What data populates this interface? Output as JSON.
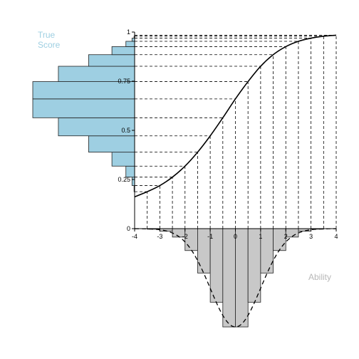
{
  "chart_data": {
    "type": "bar",
    "description_free": true,
    "x_axis": {
      "label": "Ability",
      "range": [
        -4,
        4
      ],
      "ticks": [
        {
          "value": -4,
          "label": "-4"
        },
        {
          "value": -3,
          "label": "-3"
        },
        {
          "value": -2,
          "label": "-2"
        },
        {
          "value": -1,
          "label": "-1"
        },
        {
          "value": 0,
          "label": "0"
        },
        {
          "value": 1,
          "label": "1"
        },
        {
          "value": 2,
          "label": "2"
        },
        {
          "value": 3,
          "label": "3"
        },
        {
          "value": 4,
          "label": "4"
        }
      ]
    },
    "y_axis": {
      "label_line1": "True",
      "label_line2": "Score",
      "range": [
        0,
        1
      ],
      "ticks": [
        {
          "value": 0,
          "label": "0"
        },
        {
          "value": 0.25,
          "label": "0.25"
        },
        {
          "value": 0.5,
          "label": "0.5"
        },
        {
          "value": 0.75,
          "label": "0.75"
        },
        {
          "value": 1,
          "label": "1"
        }
      ]
    },
    "curve": {
      "points": [
        [
          -4,
          0.162
        ],
        [
          -3.5,
          0.188
        ],
        [
          -3,
          0.219
        ],
        [
          -2.5,
          0.262
        ],
        [
          -2,
          0.318
        ],
        [
          -1.5,
          0.389
        ],
        [
          -1,
          0.472
        ],
        [
          -0.5,
          0.564
        ],
        [
          0,
          0.66
        ],
        [
          0.5,
          0.748
        ],
        [
          1,
          0.826
        ],
        [
          1.5,
          0.885
        ],
        [
          2,
          0.926
        ],
        [
          2.5,
          0.953
        ],
        [
          3,
          0.969
        ],
        [
          3.5,
          0.979
        ],
        [
          4,
          0.984
        ]
      ]
    },
    "ability_histogram": {
      "bin_width": 0.5,
      "bins": [
        {
          "x0": -3.5,
          "x1": -3.0,
          "density": 0.002
        },
        {
          "x0": -3.0,
          "x1": -2.5,
          "density": 0.009
        },
        {
          "x0": -2.5,
          "x1": -2.0,
          "density": 0.03
        },
        {
          "x0": -2.0,
          "x1": -1.5,
          "density": 0.078
        },
        {
          "x0": -1.5,
          "x1": -1.0,
          "density": 0.158
        },
        {
          "x0": -1.0,
          "x1": -0.5,
          "density": 0.262
        },
        {
          "x0": -0.5,
          "x1": 0.0,
          "density": 0.35
        },
        {
          "x0": 0.0,
          "x1": 0.5,
          "density": 0.35
        },
        {
          "x0": 0.5,
          "x1": 1.0,
          "density": 0.262
        },
        {
          "x0": 1.0,
          "x1": 1.5,
          "density": 0.158
        },
        {
          "x0": 1.5,
          "x1": 2.0,
          "density": 0.078
        },
        {
          "x0": 2.0,
          "x1": 2.5,
          "density": 0.03
        },
        {
          "x0": 2.5,
          "x1": 3.0,
          "density": 0.009
        },
        {
          "x0": 3.0,
          "x1": 3.5,
          "density": 0.002
        }
      ],
      "density_max": 0.35,
      "fill": "#c8c8c8"
    },
    "ability_density_curve": {
      "type": "normal",
      "mean": 0,
      "sd": 1,
      "style": "dashed"
    },
    "true_score_histogram": {
      "bins": [
        {
          "y0": 0.188,
          "y1": 0.219,
          "count": 0.002
        },
        {
          "y0": 0.219,
          "y1": 0.262,
          "count": 0.009
        },
        {
          "y0": 0.262,
          "y1": 0.318,
          "count": 0.03
        },
        {
          "y0": 0.318,
          "y1": 0.389,
          "count": 0.078
        },
        {
          "y0": 0.389,
          "y1": 0.472,
          "count": 0.158
        },
        {
          "y0": 0.472,
          "y1": 0.564,
          "count": 0.262
        },
        {
          "y0": 0.564,
          "y1": 0.66,
          "count": 0.35
        },
        {
          "y0": 0.66,
          "y1": 0.748,
          "count": 0.35
        },
        {
          "y0": 0.748,
          "y1": 0.826,
          "count": 0.262
        },
        {
          "y0": 0.826,
          "y1": 0.885,
          "count": 0.158
        },
        {
          "y0": 0.885,
          "y1": 0.926,
          "count": 0.078
        },
        {
          "y0": 0.926,
          "y1": 0.953,
          "count": 0.03
        },
        {
          "y0": 0.953,
          "y1": 0.969,
          "count": 0.009
        },
        {
          "y0": 0.969,
          "y1": 0.979,
          "count": 0.002
        }
      ],
      "count_max": 0.35,
      "fill": "#9ecfe2"
    },
    "guide_lines_x": [
      -3.5,
      -3,
      -2.5,
      -2,
      -1.5,
      -1,
      -0.5,
      0,
      0.5,
      1,
      1.5,
      2,
      2.5,
      3,
      3.5,
      4
    ],
    "grid": false,
    "colors": {
      "axis_label": "#b8b8b8",
      "y_axis_label": "#9ecfe2",
      "line": "#000000"
    }
  }
}
